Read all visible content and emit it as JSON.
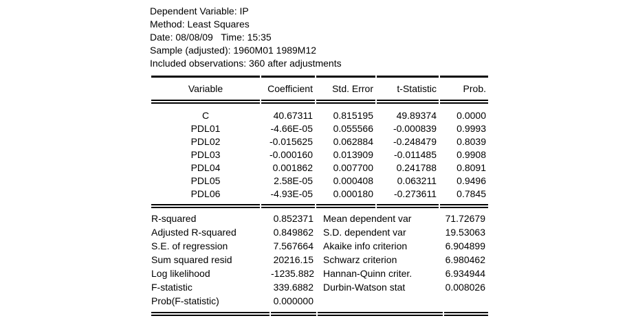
{
  "header": {
    "lines": [
      "Dependent Variable: IP",
      "Method: Least Squares",
      "Date: 08/08/09   Time: 15:35",
      "Sample (adjusted): 1960M01 1989M12",
      "Included observations: 360 after adjustments"
    ]
  },
  "coef": {
    "columns": [
      "Variable",
      "Coefficient",
      "Std. Error",
      "t-Statistic",
      "Prob."
    ],
    "rows": [
      [
        "C",
        "40.67311",
        "0.815195",
        "49.89374",
        "0.0000"
      ],
      [
        "PDL01",
        "-4.66E-05",
        "0.055566",
        "-0.000839",
        "0.9993"
      ],
      [
        "PDL02",
        "-0.015625",
        "0.062884",
        "-0.248479",
        "0.8039"
      ],
      [
        "PDL03",
        "-0.000160",
        "0.013909",
        "-0.011485",
        "0.9908"
      ],
      [
        "PDL04",
        "0.001862",
        "0.007700",
        "0.241788",
        "0.8091"
      ],
      [
        "PDL05",
        "2.58E-05",
        "0.000408",
        "0.063211",
        "0.9496"
      ],
      [
        "PDL06",
        "-4.93E-05",
        "0.000180",
        "-0.273611",
        "0.7845"
      ]
    ]
  },
  "stats": {
    "rows": [
      [
        "R-squared",
        "0.852371",
        "Mean dependent var",
        "71.72679"
      ],
      [
        "Adjusted R-squared",
        "0.849862",
        "S.D. dependent var",
        "19.53063"
      ],
      [
        "S.E. of regression",
        "7.567664",
        "Akaike info criterion",
        "6.904899"
      ],
      [
        "Sum squared resid",
        "20216.15",
        "Schwarz criterion",
        "6.980462"
      ],
      [
        "Log likelihood",
        "-1235.882",
        "Hannan-Quinn criter.",
        "6.934944"
      ],
      [
        "F-statistic",
        "339.6882",
        "Durbin-Watson stat",
        "0.008026"
      ],
      [
        "Prob(F-statistic)",
        "0.000000",
        "",
        ""
      ]
    ]
  },
  "colors": {
    "text": "#000000",
    "background": "#ffffff",
    "rule": "#000000"
  }
}
